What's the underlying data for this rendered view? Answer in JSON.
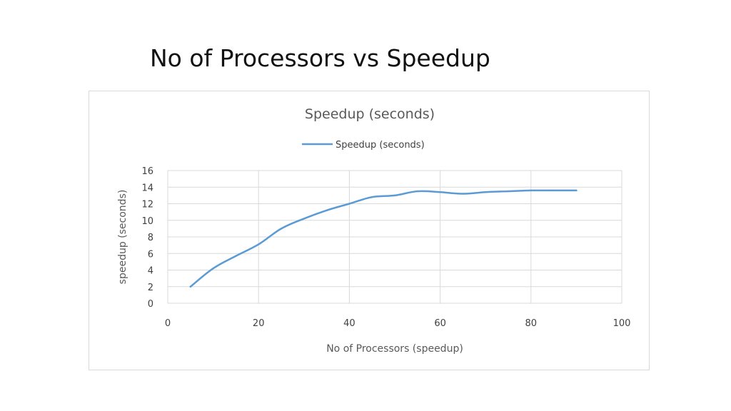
{
  "slide": {
    "title": "No of Processors vs Speedup"
  },
  "colors": {
    "series_line": "#5b9bd5",
    "gridline": "#d9d9d9",
    "frame_border": "#d9d9d9",
    "text": "#404040"
  },
  "chart_data": {
    "type": "line",
    "title": "Speedup (seconds)",
    "xlabel": "No of Processors (speedup)",
    "ylabel": "speedup (seconds)",
    "xlim": [
      0,
      100
    ],
    "ylim": [
      0,
      16
    ],
    "x_ticks": [
      0,
      20,
      40,
      60,
      80,
      100
    ],
    "y_ticks": [
      0,
      2,
      4,
      6,
      8,
      10,
      12,
      14,
      16
    ],
    "x_tick_labels": [
      "0",
      "20",
      "40",
      "60",
      "80",
      "100"
    ],
    "y_tick_labels": [
      "0",
      "2",
      "4",
      "6",
      "8",
      "10",
      "12",
      "14",
      "16"
    ],
    "grid": true,
    "legend_position": "top-center",
    "series": [
      {
        "name": "Speedup (seconds)",
        "x": [
          5,
          10,
          15,
          20,
          25,
          30,
          35,
          40,
          45,
          50,
          55,
          60,
          65,
          70,
          75,
          80,
          85,
          90
        ],
        "y": [
          2.0,
          4.2,
          5.7,
          7.1,
          9.0,
          10.2,
          11.2,
          12.0,
          12.8,
          13.0,
          13.5,
          13.4,
          13.2,
          13.4,
          13.5,
          13.6,
          13.6,
          13.6
        ]
      }
    ]
  }
}
